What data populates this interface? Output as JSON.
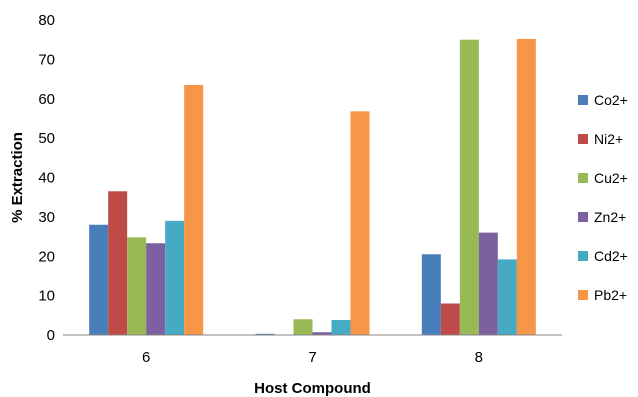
{
  "chart_data": {
    "type": "bar",
    "categories": [
      "6",
      "7",
      "8"
    ],
    "series": [
      {
        "name": "Co2+",
        "color": "#4a7ebb",
        "values": [
          28,
          0.3,
          20.5
        ]
      },
      {
        "name": "Ni2+",
        "color": "#be4b48",
        "values": [
          36.5,
          0,
          8
        ]
      },
      {
        "name": "Cu2+",
        "color": "#98b954",
        "values": [
          24.8,
          4,
          75
        ]
      },
      {
        "name": "Zn2+",
        "color": "#7d60a0",
        "values": [
          23.3,
          0.7,
          26
        ]
      },
      {
        "name": "Cd2+",
        "color": "#46aac5",
        "values": [
          29,
          3.8,
          19.2
        ]
      },
      {
        "name": "Pb2+",
        "color": "#f79646",
        "values": [
          63.5,
          56.8,
          75.2
        ]
      }
    ],
    "title": "",
    "xlabel": "Host Compound",
    "ylabel": "% Extraction",
    "ylim": [
      0,
      80
    ],
    "yticks": [
      0,
      10,
      20,
      30,
      40,
      50,
      60,
      70,
      80
    ],
    "grid": false,
    "legend": "right"
  }
}
